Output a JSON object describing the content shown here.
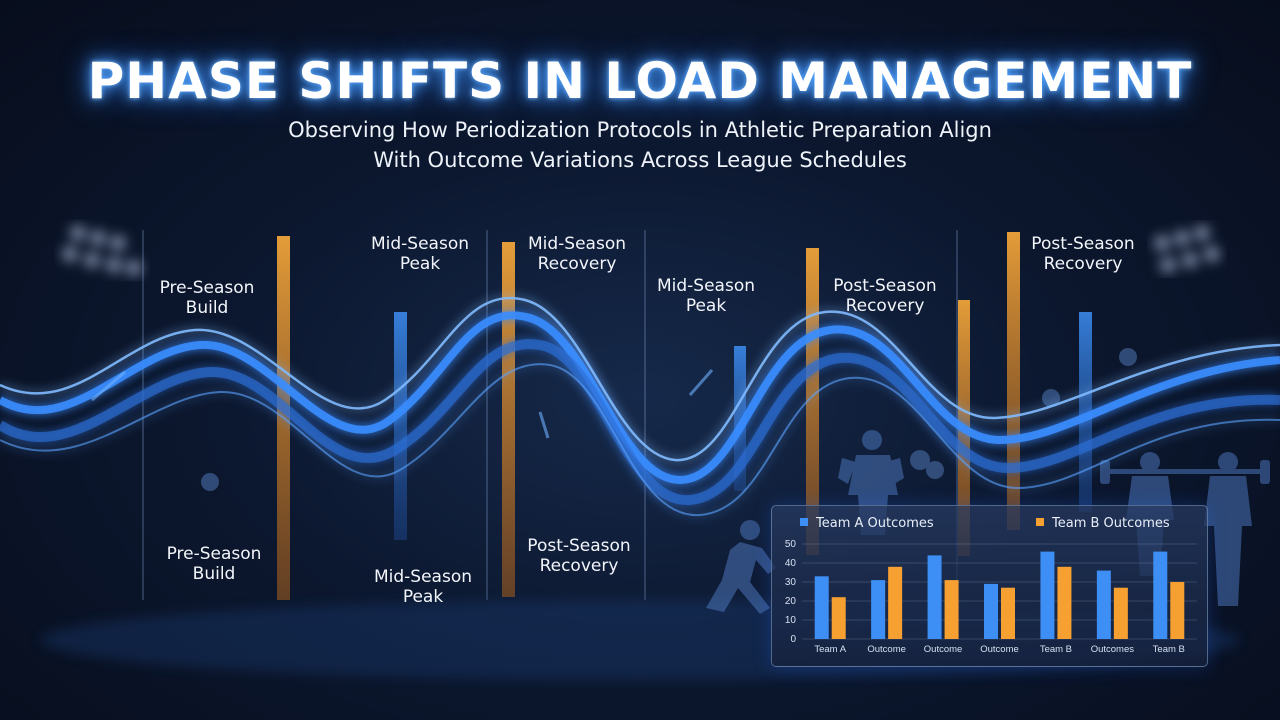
{
  "title": "PHASE SHIFTS IN LOAD MANAGEMENT",
  "subtitle_line1": "Observing How Periodization Protocols in Athletic Preparation Align",
  "subtitle_line2": "With Outcome Variations Across League Schedules",
  "phase_labels": [
    {
      "line1": "Pre-Season",
      "line2": "Build"
    },
    {
      "line1": "Mid-Season",
      "line2": "Peak"
    },
    {
      "line1": "Mid-Season",
      "line2": "Recovery"
    },
    {
      "line1": "Mid-Season",
      "line2": "Peak"
    },
    {
      "line1": "Post-Season",
      "line2": "Recovery"
    },
    {
      "line1": "Post-Season",
      "line2": "Recovery"
    },
    {
      "line1": "Pre-Season",
      "line2": "Build"
    },
    {
      "line1": "Mid-Season",
      "line2": "Peak"
    },
    {
      "line1": "Post-Season",
      "line2": "Recovery"
    }
  ],
  "colors": {
    "team_a": "#3d8ff5",
    "team_b": "#f5a030",
    "wave": "#3a8dff",
    "title_glow": "#4da3ff"
  },
  "chart_data": {
    "type": "bar",
    "legend": [
      "Team A Outcomes",
      "Team B Outcomes"
    ],
    "legend_position": "top",
    "categories": [
      "Team A",
      "Outcome",
      "Outcome",
      "Outcome",
      "Team B",
      "Outcomes",
      "Team B"
    ],
    "series": [
      {
        "name": "Team A Outcomes",
        "values": [
          33,
          31,
          44,
          29,
          46,
          36,
          46
        ]
      },
      {
        "name": "Team B Outcomes",
        "values": [
          22,
          38,
          31,
          27,
          38,
          27,
          30
        ]
      }
    ],
    "ylim": [
      0,
      50
    ],
    "yticks": [
      0,
      10,
      20,
      30,
      40,
      50
    ],
    "grid": true
  }
}
